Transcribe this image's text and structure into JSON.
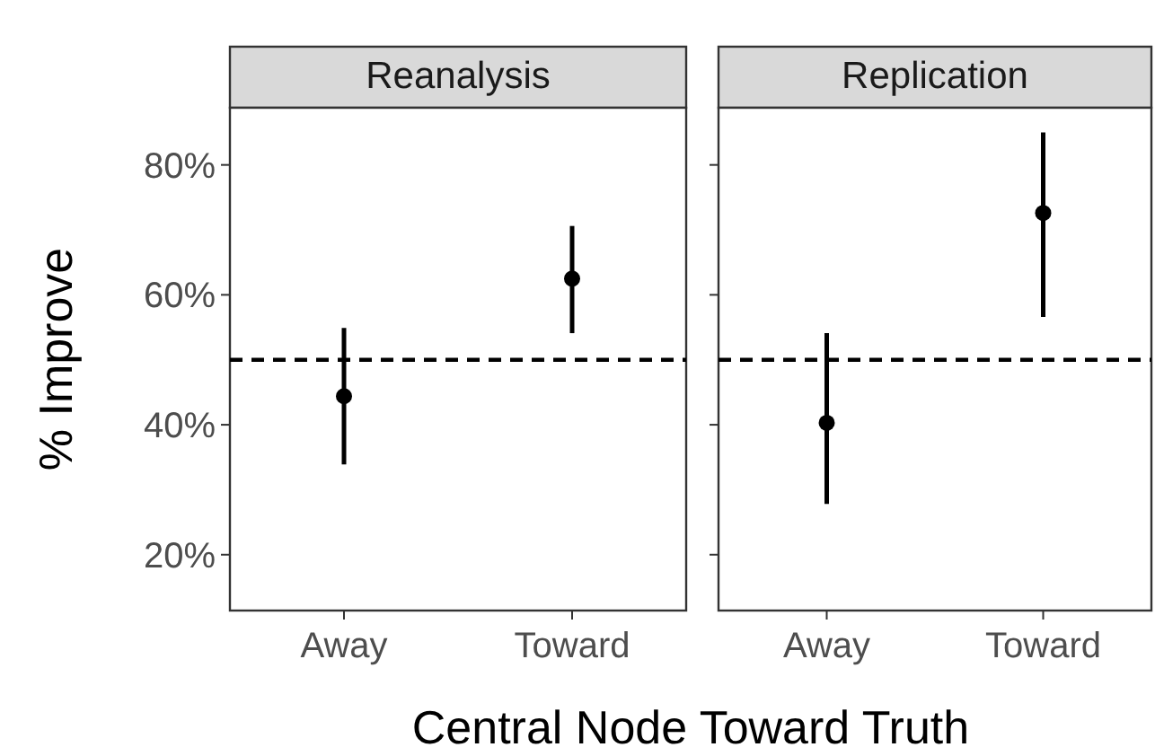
{
  "chart_data": [
    {
      "type": "scatter",
      "title": "Reanalysis",
      "xlabel": "Central Node Toward Truth",
      "ylabel": "% Improve",
      "categories": [
        "Away",
        "Toward"
      ],
      "values": [
        44.4,
        62.5
      ],
      "errors": [
        [
          33.9,
          54.9
        ],
        [
          54.1,
          70.6
        ]
      ],
      "color": "#000000",
      "marker": "circle",
      "ylim": [
        11.4,
        88.8
      ],
      "yticks": [
        {
          "value": 20,
          "label": "20%"
        },
        {
          "value": 40,
          "label": "40%"
        },
        {
          "value": 60,
          "label": "60%"
        },
        {
          "value": 80,
          "label": "80%"
        }
      ],
      "ref_lines": [
        {
          "axis": "y",
          "value": 50,
          "line_style": "dashed",
          "color": "#000000"
        }
      ],
      "grid": false
    },
    {
      "type": "scatter",
      "title": "Replication",
      "categories": [
        "Away",
        "Toward"
      ],
      "values": [
        40.3,
        72.6
      ],
      "errors": [
        [
          27.8,
          54.1
        ],
        [
          56.6,
          85
        ]
      ],
      "color": "#000000",
      "marker": "circle",
      "ylim": [
        11.4,
        88.8
      ],
      "yticks": [
        {
          "value": 20,
          "label": null
        },
        {
          "value": 40,
          "label": null
        },
        {
          "value": 60,
          "label": null
        },
        {
          "value": 80,
          "label": null
        }
      ],
      "ref_lines": [
        {
          "axis": "y",
          "value": 50,
          "line_style": "dashed",
          "color": "#000000"
        }
      ],
      "grid": false,
      "tick_labels": "x"
    }
  ]
}
